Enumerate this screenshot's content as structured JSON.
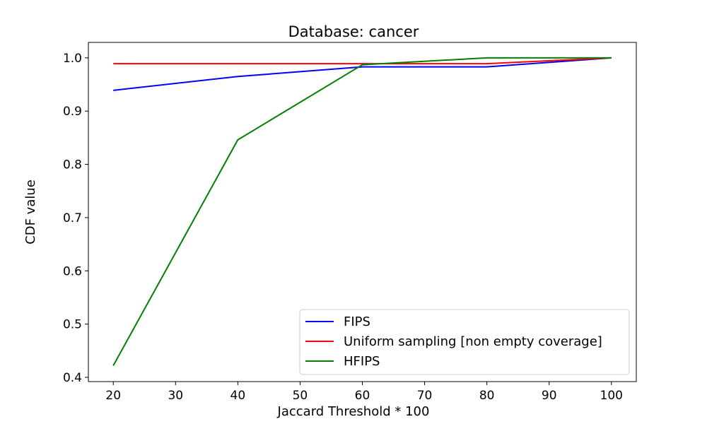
{
  "chart_data": {
    "type": "line",
    "title": "Database: cancer",
    "xlabel": "Jaccard Threshold * 100",
    "ylabel": "CDF value",
    "x": [
      20,
      40,
      60,
      80,
      100
    ],
    "xlim": [
      16,
      104
    ],
    "ylim": [
      0.392,
      1.029
    ],
    "xticks": [
      20,
      30,
      40,
      50,
      60,
      70,
      80,
      90,
      100
    ],
    "yticks": [
      0.4,
      0.5,
      0.6,
      0.7,
      0.8,
      0.9,
      1.0
    ],
    "ytick_labels": [
      "0.4",
      "0.5",
      "0.6",
      "0.7",
      "0.8",
      "0.9",
      "1.0"
    ],
    "grid": false,
    "legend_position": "lower-right",
    "series": [
      {
        "name": "FIPS",
        "color": "#0000ff",
        "values": [
          0.939,
          0.965,
          0.983,
          0.983,
          1.0
        ]
      },
      {
        "name": "Uniform sampling [non empty coverage]",
        "color": "#ff0000",
        "values": [
          0.989,
          0.989,
          0.989,
          0.989,
          1.0
        ]
      },
      {
        "name": "HFIPS",
        "color": "#008000",
        "values": [
          0.422,
          0.846,
          0.987,
          1.0,
          1.0
        ]
      }
    ]
  }
}
